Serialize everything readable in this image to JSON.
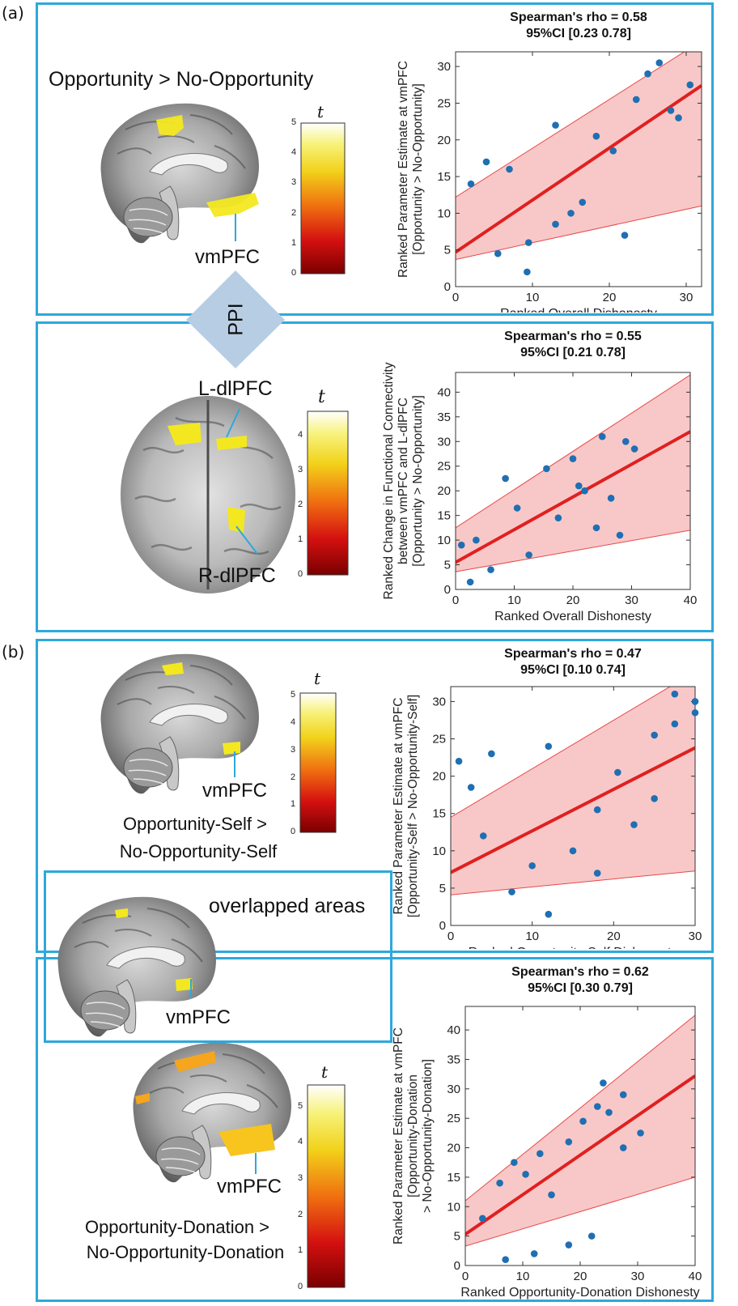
{
  "panel_labels": {
    "a": "(a)",
    "b": "(b)"
  },
  "ppi_label": "PPI",
  "brain_labels": {
    "a_top_title": "Opportunity > No-Opportunity",
    "a_top_region": "vmPFC",
    "a_bottom_left": "L-dlPFC",
    "a_bottom_right": "R-dlPFC",
    "b_self_region": "vmPFC",
    "b_self_caption_1": "Opportunity-Self >",
    "b_self_caption_2": "No-Opportunity-Self",
    "b_overlap_title": "overlapped areas",
    "b_overlap_region": "vmPFC",
    "b_donation_region": "vmPFC",
    "b_donation_caption_1": "Opportunity-Donation >",
    "b_donation_caption_2": "No-Opportunity-Donation"
  },
  "colorbars": [
    {
      "symbol": "t",
      "ticks": [
        "0",
        "1",
        "2",
        "3",
        "4",
        "5"
      ],
      "max": 5
    },
    {
      "symbol": "t",
      "ticks": [
        "0",
        "1",
        "2",
        "3",
        "4"
      ],
      "max": 4.7
    },
    {
      "symbol": "t",
      "ticks": [
        "0",
        "1",
        "2",
        "3",
        "4",
        "5"
      ],
      "max": 5.1
    },
    {
      "symbol": "t",
      "ticks": [
        "0",
        "1",
        "2",
        "3",
        "4",
        "5"
      ],
      "max": 5.6
    }
  ],
  "colors": {
    "frame": "#2ea8dc",
    "fit_line": "#e02020",
    "band_fill": "#f8c8c8",
    "band_edge": "#e84848",
    "point": "#1f6fb2",
    "ppi_arrow": "#b7cde4"
  },
  "chart_data": [
    {
      "type": "scatter",
      "title": "Spearman's rho = 0.58",
      "subtitle": "95%CI [0.23 0.78]",
      "xlabel": "Ranked Overall Dishonesty",
      "ylabel_lines": [
        "Ranked Parameter Estimate at vmPFC",
        "[Opportunity > No-Opportunity]"
      ],
      "xlim": [
        0,
        32
      ],
      "ylim": [
        0,
        32
      ],
      "xticks": [
        0,
        10,
        20,
        30
      ],
      "yticks": [
        0,
        5,
        10,
        15,
        20,
        25,
        30
      ],
      "x": [
        2,
        4,
        5.5,
        7,
        9.3,
        9.5,
        13,
        13,
        15,
        16.5,
        18.3,
        20.5,
        22,
        23.5,
        25,
        26.5,
        28,
        29,
        30.5
      ],
      "y": [
        14,
        17,
        4.5,
        16,
        2,
        6,
        8.5,
        22,
        10,
        11.5,
        20.5,
        18.5,
        7,
        25.5,
        29,
        30.5,
        24,
        23,
        27.5
      ],
      "fit": [
        [
          0,
          4.7
        ],
        [
          32,
          27.4
        ]
      ],
      "ci_upper": [
        [
          0,
          12.2
        ],
        [
          32,
          33.5
        ]
      ],
      "ci_lower": [
        [
          0,
          3.7
        ],
        [
          32,
          11
        ]
      ]
    },
    {
      "type": "scatter",
      "title": "Spearman's rho = 0.55",
      "subtitle": "95%CI [0.21 0.78]",
      "xlabel": "Ranked Overall Dishonesty",
      "ylabel_lines": [
        "Ranked Change in Functional Connectivity",
        "between vmPFC and L-dlPFC",
        "[Opportunity > No-Opportunity]"
      ],
      "xlim": [
        0,
        40
      ],
      "ylim": [
        0,
        44
      ],
      "xticks": [
        0,
        10,
        20,
        30,
        40
      ],
      "yticks": [
        0,
        5,
        10,
        15,
        20,
        25,
        30,
        35,
        40
      ],
      "x": [
        1,
        2.5,
        3.5,
        6,
        8.5,
        10.5,
        12.5,
        15.5,
        17.5,
        20,
        21,
        22,
        24,
        25,
        26.5,
        28,
        29,
        30.5
      ],
      "y": [
        9,
        1.5,
        10,
        4,
        22.5,
        16.5,
        7,
        24.5,
        14.5,
        26.5,
        21,
        20,
        12.5,
        31,
        18.5,
        11,
        30,
        28.5
      ],
      "fit": [
        [
          0,
          5.5
        ],
        [
          40,
          32
        ]
      ],
      "ci_upper": [
        [
          0,
          12.5
        ],
        [
          40,
          43.5
        ]
      ],
      "ci_lower": [
        [
          0,
          3.6
        ],
        [
          40,
          12
        ]
      ]
    },
    {
      "type": "scatter",
      "title": "Spearman's rho = 0.47",
      "subtitle": "95%CI [0.10 0.74]",
      "xlabel": "Ranked Opportunity-Self Dishonesty",
      "ylabel_lines": [
        "Ranked Parameter Estimate at vmPFC",
        "[Opportunity-Self > No-Opportunity-Self]"
      ],
      "xlim": [
        0,
        30
      ],
      "ylim": [
        0,
        32
      ],
      "xticks": [
        0,
        10,
        20,
        30
      ],
      "yticks": [
        0,
        5,
        10,
        15,
        20,
        25,
        30
      ],
      "x": [
        1,
        2.5,
        4,
        5,
        7.5,
        10,
        12,
        12,
        15,
        18,
        18,
        20.5,
        22.5,
        25,
        25,
        27.5,
        27.5,
        30,
        30
      ],
      "y": [
        22,
        18.5,
        12,
        23,
        4.5,
        8,
        1.5,
        24,
        10,
        7,
        15.5,
        20.5,
        13.5,
        17,
        25.5,
        27,
        31,
        28.5,
        30
      ],
      "fit": [
        [
          0,
          7.1
        ],
        [
          30,
          23.8
        ]
      ],
      "ci_upper": [
        [
          0,
          14.5
        ],
        [
          30,
          34
        ]
      ],
      "ci_lower": [
        [
          0,
          4.1
        ],
        [
          30,
          7.3
        ]
      ]
    },
    {
      "type": "scatter",
      "title": "Spearman's rho = 0.62",
      "subtitle": "95%CI [0.30 0.79]",
      "xlabel": "Ranked Opportunity-Donation Dishonesty",
      "ylabel_lines": [
        "Ranked Parameter Estimate at vmPFC",
        "[Opportunity-Donation",
        "> No-Opportunity-Donation]"
      ],
      "xlim": [
        0,
        40
      ],
      "ylim": [
        0,
        44
      ],
      "xticks": [
        0,
        10,
        20,
        30,
        40
      ],
      "yticks": [
        0,
        5,
        10,
        15,
        20,
        25,
        30,
        35,
        40
      ],
      "x": [
        3,
        6,
        7,
        8.5,
        10.5,
        12,
        13,
        15,
        18,
        18,
        20.5,
        22,
        23,
        24,
        25,
        27.5,
        27.5,
        30.5
      ],
      "y": [
        8,
        14,
        1,
        17.5,
        15.5,
        2,
        19,
        12,
        3.5,
        21,
        24.5,
        5,
        27,
        31,
        26,
        20,
        29,
        22.5
      ],
      "fit": [
        [
          0,
          5.3
        ],
        [
          40,
          32.2
        ]
      ],
      "ci_upper": [
        [
          0,
          11
        ],
        [
          40,
          42.5
        ]
      ],
      "ci_lower": [
        [
          0,
          3.3
        ],
        [
          40,
          15
        ]
      ]
    }
  ]
}
